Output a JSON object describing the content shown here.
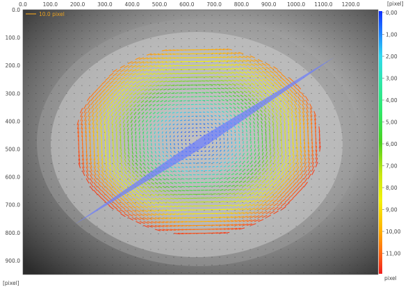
{
  "chart_data": {
    "type": "heatmap",
    "x_axis": {
      "unit": "[pixel]",
      "ticks": [
        "0.0",
        "100.0",
        "200.0",
        "300.0",
        "400.0",
        "500.0",
        "600.0",
        "700.0",
        "800.0",
        "900.0",
        "1000.0",
        "1100.0",
        "1200.0"
      ],
      "tick_values": [
        0,
        100,
        200,
        300,
        400,
        500,
        600,
        700,
        800,
        900,
        1000,
        1100,
        1200
      ],
      "range": [
        0,
        1300
      ]
    },
    "y_axis": {
      "unit": "[pixel]",
      "ticks": [
        "0.0",
        "100.0",
        "200.0",
        "300.0",
        "400.0",
        "500.0",
        "600.0",
        "700.0",
        "800.0",
        "900.0"
      ],
      "tick_values": [
        0,
        100,
        200,
        300,
        400,
        500,
        600,
        700,
        800,
        900
      ],
      "range": [
        0,
        950
      ],
      "inverted": true
    },
    "colorbar": {
      "unit_top": "[pixel]",
      "unit_bottom": "pixel",
      "ticks": [
        "0,00",
        "1,00",
        "2,00",
        "3,00",
        "4,00",
        "5,00",
        "6,00",
        "7,00",
        "8,00",
        "9,00",
        "10,00",
        "11,00"
      ],
      "tick_values": [
        0,
        1,
        2,
        3,
        4,
        5,
        6,
        7,
        8,
        9,
        10,
        11
      ],
      "range": [
        0,
        12
      ],
      "colors": [
        "#1030ff",
        "#1e7fff",
        "#2fd8f0",
        "#2ee86a",
        "#4ad21e",
        "#c8e610",
        "#f2f20a",
        "#ffb400",
        "#ff6a14",
        "#f01e1e"
      ]
    },
    "reference_vector_label": "10.0 pixel",
    "vector_field": {
      "center": [
        640,
        470
      ],
      "semi_axes": [
        450,
        340
      ],
      "max_magnitude": 11.5,
      "rotation": "counter-clockwise"
    },
    "diagonal_band": {
      "from": [
        190,
        770
      ],
      "to": [
        1140,
        170
      ]
    }
  },
  "colors": {
    "tick_text": "#444444",
    "reference_label": "#e8a020",
    "band": "#6a7cff"
  }
}
